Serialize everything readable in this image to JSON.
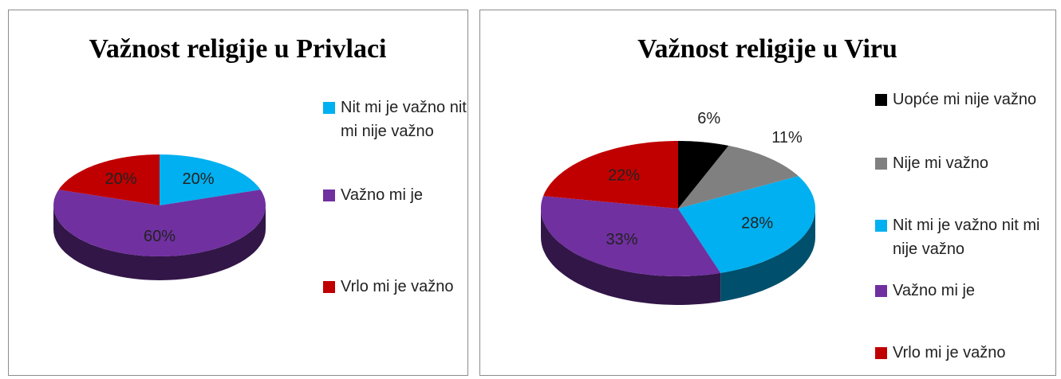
{
  "chart_data": [
    {
      "type": "pie",
      "title": "Važnost religije u Privlaci",
      "categories": [
        "Nit mi je važno nit mi nije važno",
        "Važno mi je",
        "Vrlo mi je važno"
      ],
      "values": [
        20,
        60,
        20
      ],
      "value_labels": [
        "20%",
        "60%",
        "20%"
      ],
      "colors": [
        "#00b0f0",
        "#7030a0",
        "#c00000"
      ],
      "legend": "right"
    },
    {
      "type": "pie",
      "title": "Važnost religije u Viru",
      "categories": [
        "Uopće mi nije važno",
        "Nije mi važno",
        "Nit mi je važno nit mi nije važno",
        "Važno mi je",
        "Vrlo mi je važno"
      ],
      "values": [
        6,
        11,
        28,
        33,
        22
      ],
      "value_labels": [
        "6%",
        "11%",
        "28%",
        "33%",
        "22%"
      ],
      "colors": [
        "#000000",
        "#808080",
        "#00b0f0",
        "#7030a0",
        "#c00000"
      ],
      "legend": "right"
    }
  ]
}
